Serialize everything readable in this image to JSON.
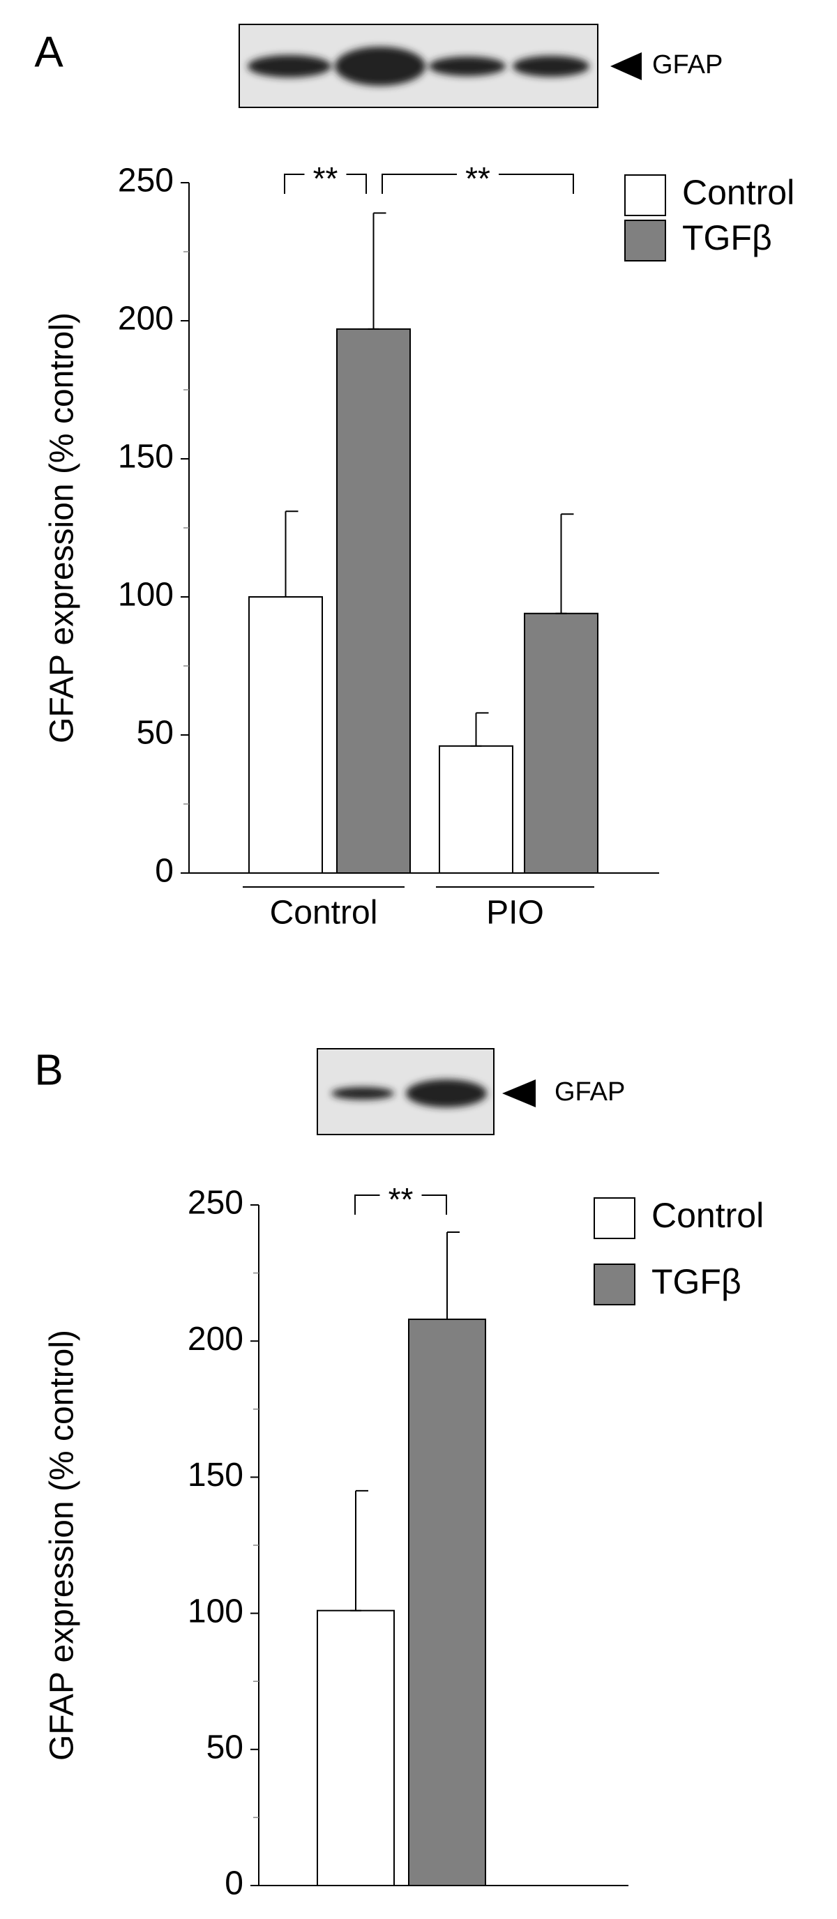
{
  "chart_data": [
    {
      "type": "bar",
      "panel": "A",
      "blot_label": "GFAP",
      "y_label": "GFAP expression (% control)",
      "categories": [
        "Control",
        "PIO"
      ],
      "series": [
        {
          "name": "Control",
          "color": "#ffffff",
          "values": [
            100,
            46
          ],
          "errors": [
            31,
            12
          ]
        },
        {
          "name": "TGFβ",
          "color": "#808080",
          "values": [
            197,
            94
          ],
          "errors": [
            42,
            36
          ]
        }
      ],
      "ylim": [
        0,
        250
      ],
      "yticks": [
        0,
        50,
        100,
        150,
        200,
        250
      ],
      "minor_yticks": [
        25,
        75,
        125,
        175,
        225
      ],
      "annotations": [
        "**",
        "**"
      ]
    },
    {
      "type": "bar",
      "panel": "B",
      "blot_label": "GFAP",
      "y_label": "GFAP expression (% control)",
      "categories": [
        null
      ],
      "series": [
        {
          "name": "Control",
          "color": "#ffffff",
          "values": [
            101
          ],
          "errors": [
            44
          ]
        },
        {
          "name": "TGFβ",
          "color": "#808080",
          "values": [
            208
          ],
          "errors": [
            32
          ]
        }
      ],
      "ylim": [
        0,
        250
      ],
      "yticks": [
        0,
        50,
        100,
        150,
        200,
        250
      ],
      "minor_yticks": [
        25,
        75,
        125,
        175,
        225
      ],
      "annotations": [
        "**"
      ]
    }
  ]
}
